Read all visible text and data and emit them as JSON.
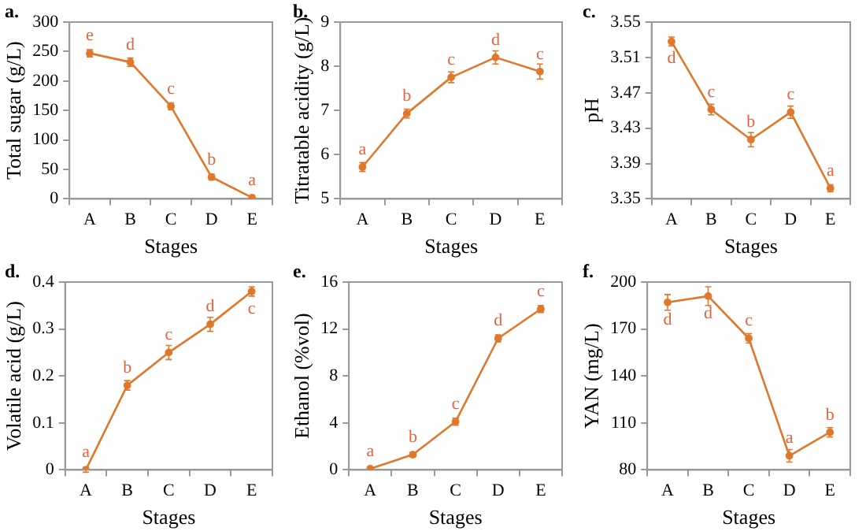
{
  "chart_data": [
    {
      "type": "line",
      "title": "a.",
      "xlabel": "Stages",
      "ylabel": "Total sugar (g/L)",
      "categories": [
        "A",
        "B",
        "C",
        "D",
        "E"
      ],
      "series": [
        {
          "color": "#e0782c",
          "values": [
            247,
            232,
            157,
            37,
            2
          ],
          "errors": [
            6,
            7,
            6,
            5,
            1
          ]
        }
      ],
      "ylim": [
        0,
        300
      ],
      "yticks": [
        0,
        50,
        100,
        150,
        200,
        250,
        300
      ],
      "grid": false,
      "legend": false,
      "marker": "circle",
      "line_style": "solid",
      "annotations": [
        {
          "text": "e",
          "x": "A",
          "y": 247
        },
        {
          "text": "d",
          "x": "B",
          "y": 232
        },
        {
          "text": "c",
          "x": "C",
          "y": 157
        },
        {
          "text": "b",
          "x": "D",
          "y": 37
        },
        {
          "text": "a",
          "x": "E",
          "y": 2
        }
      ]
    },
    {
      "type": "line",
      "title": "b.",
      "xlabel": "Stages",
      "ylabel": "Titratable acidity (g/L)",
      "categories": [
        "A",
        "B",
        "C",
        "D",
        "E"
      ],
      "series": [
        {
          "color": "#e0782c",
          "values": [
            5.72,
            6.93,
            7.75,
            8.2,
            7.88
          ],
          "errors": [
            0.1,
            0.1,
            0.12,
            0.15,
            0.17
          ]
        }
      ],
      "ylim": [
        5,
        9
      ],
      "yticks": [
        5,
        6,
        7,
        8,
        9
      ],
      "grid": false,
      "legend": false,
      "marker": "circle",
      "line_style": "solid",
      "annotations": [
        {
          "text": "a",
          "x": "A",
          "y": 5.72
        },
        {
          "text": "b",
          "x": "B",
          "y": 6.93
        },
        {
          "text": "c",
          "x": "C",
          "y": 7.75
        },
        {
          "text": "d",
          "x": "D",
          "y": 8.2
        },
        {
          "text": "c",
          "x": "E",
          "y": 7.88
        }
      ]
    },
    {
      "type": "line",
      "title": "c.",
      "xlabel": "Stages",
      "ylabel": "pH",
      "categories": [
        "A",
        "B",
        "C",
        "D",
        "E"
      ],
      "series": [
        {
          "color": "#e0782c",
          "values": [
            3.528,
            3.451,
            3.417,
            3.448,
            3.362
          ],
          "errors": [
            0.005,
            0.006,
            0.008,
            0.007,
            0.004
          ]
        }
      ],
      "ylim": [
        3.35,
        3.55
      ],
      "yticks": [
        3.35,
        3.39,
        3.43,
        3.47,
        3.51,
        3.55
      ],
      "grid": false,
      "legend": false,
      "marker": "circle",
      "line_style": "solid",
      "annotations": [
        {
          "text": "d",
          "x": "A",
          "y": 3.528
        },
        {
          "text": "c",
          "x": "B",
          "y": 3.451
        },
        {
          "text": "b",
          "x": "C",
          "y": 3.417
        },
        {
          "text": "c",
          "x": "D",
          "y": 3.448
        },
        {
          "text": "a",
          "x": "E",
          "y": 3.362
        }
      ]
    },
    {
      "type": "line",
      "title": "d.",
      "xlabel": "Stages",
      "ylabel": "Volatile acid (g/L)",
      "categories": [
        "A",
        "B",
        "C",
        "D",
        "E"
      ],
      "series": [
        {
          "color": "#e0782c",
          "values": [
            0,
            0.18,
            0.25,
            0.31,
            0.38
          ],
          "errors": [
            0.005,
            0.01,
            0.015,
            0.015,
            0.01
          ]
        }
      ],
      "ylim": [
        0,
        0.4
      ],
      "yticks": [
        0,
        0.1,
        0.2,
        0.3,
        0.4
      ],
      "grid": false,
      "legend": false,
      "marker": "circle",
      "line_style": "solid",
      "annotations": [
        {
          "text": "a",
          "x": "A",
          "y": 0
        },
        {
          "text": "b",
          "x": "B",
          "y": 0.18
        },
        {
          "text": "c",
          "x": "C",
          "y": 0.25
        },
        {
          "text": "d",
          "x": "D",
          "y": 0.31
        },
        {
          "text": "c",
          "x": "E",
          "y": 0.38
        }
      ]
    },
    {
      "type": "line",
      "title": "e.",
      "xlabel": "Stages",
      "ylabel": "Ethanol (%vol)",
      "categories": [
        "A",
        "B",
        "C",
        "D",
        "E"
      ],
      "series": [
        {
          "color": "#e0782c",
          "values": [
            0.1,
            1.3,
            4.1,
            11.2,
            13.7
          ],
          "errors": [
            0.05,
            0.2,
            0.3,
            0.3,
            0.3
          ]
        }
      ],
      "ylim": [
        0,
        16
      ],
      "yticks": [
        0,
        4,
        8,
        12,
        16
      ],
      "grid": false,
      "legend": false,
      "marker": "circle",
      "line_style": "solid",
      "annotations": [
        {
          "text": "a",
          "x": "A",
          "y": 0.1
        },
        {
          "text": "b",
          "x": "B",
          "y": 1.3
        },
        {
          "text": "c",
          "x": "C",
          "y": 4.1
        },
        {
          "text": "d",
          "x": "D",
          "y": 11.2
        },
        {
          "text": "c",
          "x": "E",
          "y": 13.7
        }
      ]
    },
    {
      "type": "line",
      "title": "f.",
      "xlabel": "Stages",
      "ylabel": "YAN (mg/L)",
      "categories": [
        "A",
        "B",
        "C",
        "D",
        "E"
      ],
      "series": [
        {
          "color": "#e0782c",
          "values": [
            187,
            191,
            164,
            89,
            104
          ],
          "errors": [
            5,
            6,
            3,
            4,
            3
          ]
        }
      ],
      "ylim": [
        80,
        200
      ],
      "yticks": [
        80,
        110,
        140,
        170,
        200
      ],
      "grid": false,
      "legend": false,
      "marker": "circle",
      "line_style": "solid",
      "annotations": [
        {
          "text": "d",
          "x": "A",
          "y": 187
        },
        {
          "text": "d",
          "x": "B",
          "y": 191
        },
        {
          "text": "c",
          "x": "C",
          "y": 164
        },
        {
          "text": "a",
          "x": "D",
          "y": 89
        },
        {
          "text": "b",
          "x": "E",
          "y": 104
        }
      ]
    }
  ]
}
